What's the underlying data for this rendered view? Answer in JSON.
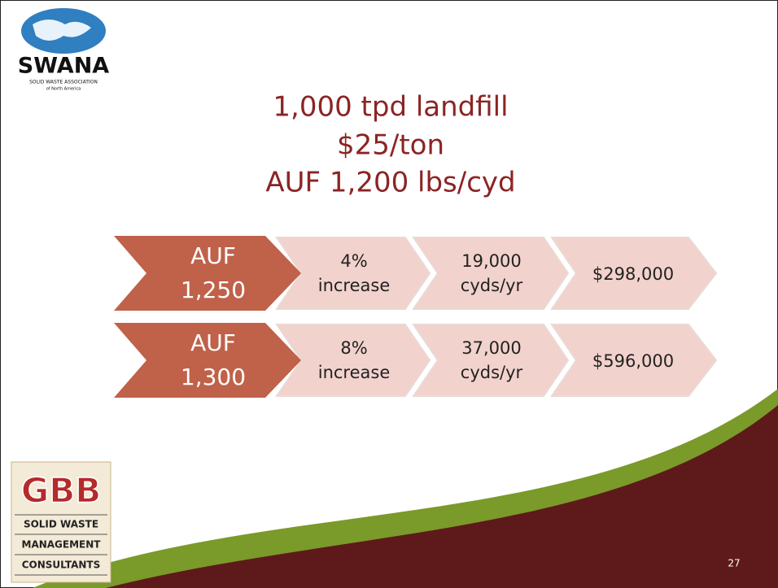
{
  "logos": {
    "swana": {
      "name": "SWANA",
      "tagline": "SOLID WASTE ASSOCIATION",
      "sub": "of North America"
    },
    "gbb": {
      "name": "GBB",
      "lines": [
        "SOLID WASTE",
        "MANAGEMENT",
        "CONSULTANTS"
      ]
    }
  },
  "title": [
    "1,000 tpd landfill",
    "$25/ton",
    "AUF 1,200 lbs/cyd"
  ],
  "rows": [
    {
      "label": [
        "AUF",
        "1,250"
      ],
      "steps": [
        [
          "4%",
          "increase"
        ],
        [
          "19,000",
          "cyds/yr"
        ],
        [
          "$298,000"
        ]
      ]
    },
    {
      "label": [
        "AUF",
        "1,300"
      ],
      "steps": [
        [
          "8%",
          "increase"
        ],
        [
          "37,000",
          "cyds/yr"
        ],
        [
          "$596,000"
        ]
      ]
    }
  ],
  "page_number": "27"
}
